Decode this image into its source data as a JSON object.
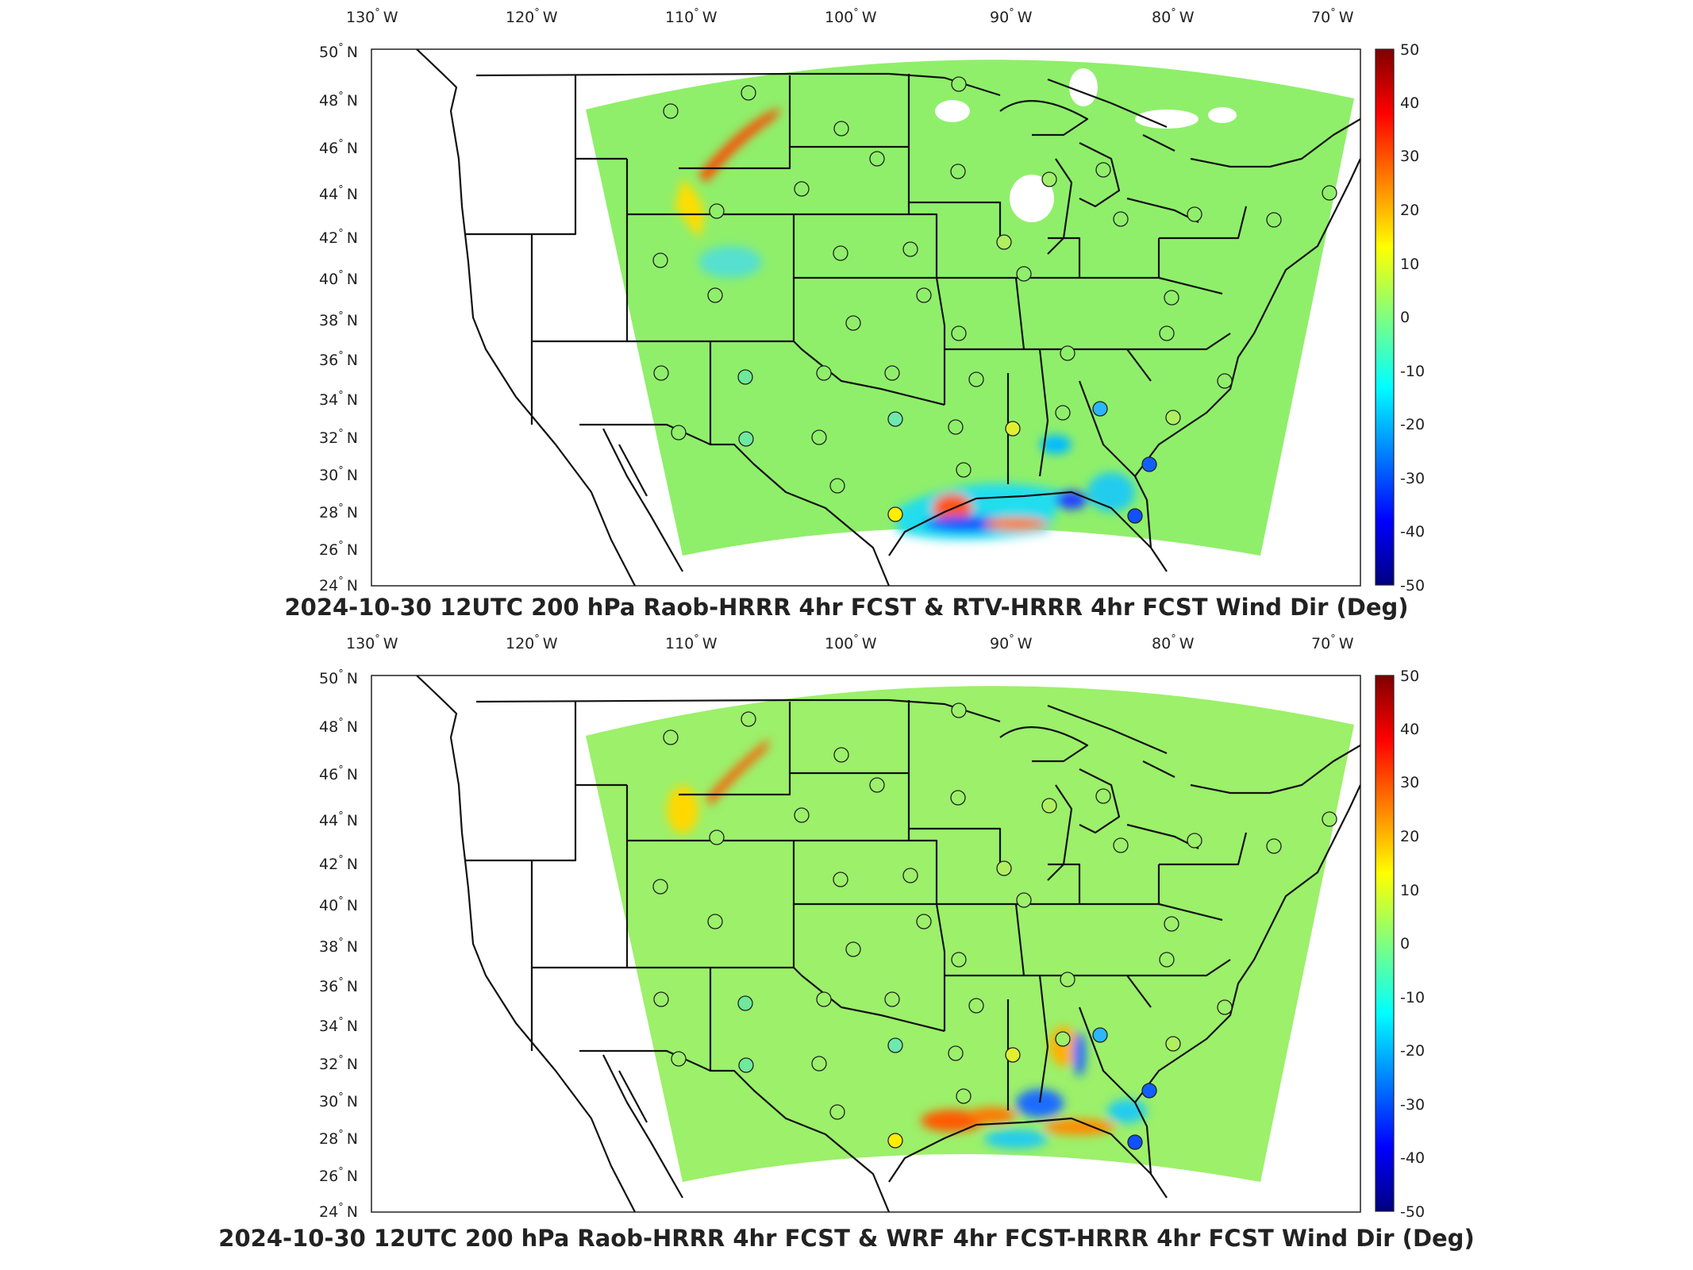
{
  "lon_ticks": [
    "130",
    "120",
    "110",
    "100",
    "90",
    "80",
    "70"
  ],
  "lon_suffix": "W",
  "lat_ticks": [
    "50",
    "48",
    "46",
    "44",
    "42",
    "40",
    "38",
    "36",
    "34",
    "32",
    "30",
    "28",
    "26",
    "24"
  ],
  "lat_suffix": "N",
  "degree_symbol": "°",
  "colorbar_ticks": [
    "50",
    "40",
    "30",
    "20",
    "10",
    "0",
    "-10",
    "-20",
    "-30",
    "-40",
    "-50"
  ],
  "colormap": "jet",
  "panels": [
    {
      "title": "2024-10-30 12UTC 200 hPa Raob-HRRR 4hr FCST & RTV-HRRR 4hr FCST Wind Dir (Deg)"
    },
    {
      "title": "2024-10-30 12UTC 200 hPa Raob-HRRR 4hr FCST & WRF 4hr FCST-HRRR 4hr FCST Wind Dir (Deg)"
    }
  ],
  "colors": {
    "field_base": "#8fef6a",
    "station_fill": "#8ff07a",
    "station_stroke": "#222222",
    "frame": "#222222"
  }
}
